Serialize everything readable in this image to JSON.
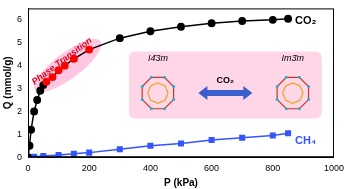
{
  "chart_data": {
    "type": "line",
    "x_label": "P (kPa)",
    "y_label": "Q (mmol/g)",
    "xlim": [
      0,
      1000
    ],
    "xticks": [
      0,
      200,
      400,
      600,
      800,
      1000
    ],
    "ylim": [
      0,
      6.5
    ],
    "yticks": [
      0,
      1,
      2,
      3,
      4,
      5,
      6
    ],
    "grid": false,
    "annotations": [
      "Phase Transition",
      "I4̄3m",
      "Im3̄m",
      "CO₂"
    ],
    "series": [
      {
        "name": "CO₂",
        "color": "#000000",
        "marker": "circle",
        "line_style": "solid",
        "x": [
          0,
          5,
          10,
          20,
          30,
          40,
          50,
          60,
          80,
          100,
          120,
          150,
          200,
          300,
          400,
          500,
          600,
          700,
          800,
          850
        ],
        "values": [
          0,
          0.5,
          1.2,
          2.0,
          2.5,
          2.9,
          3.15,
          3.3,
          3.5,
          3.8,
          4.0,
          4.3,
          4.7,
          5.2,
          5.5,
          5.7,
          5.85,
          5.95,
          6.0,
          6.05
        ],
        "colors": [
          "#000000",
          "#000000",
          "#000000",
          "#000000",
          "#000000",
          "#000000",
          "#000000",
          "#ff0000",
          "#ff0000",
          "#ff0000",
          "#ff0000",
          "#ff0000",
          "#ff0000",
          "#000000",
          "#000000",
          "#000000",
          "#000000",
          "#000000",
          "#000000",
          "#000000"
        ]
      },
      {
        "name": "CH₄",
        "color": "#3355ff",
        "marker": "square",
        "line_style": "solid",
        "x": [
          0,
          20,
          50,
          100,
          150,
          200,
          300,
          400,
          500,
          600,
          700,
          800,
          850
        ],
        "values": [
          0,
          0.02,
          0.05,
          0.1,
          0.15,
          0.2,
          0.35,
          0.5,
          0.6,
          0.75,
          0.85,
          0.95,
          1.05
        ]
      }
    ]
  }
}
